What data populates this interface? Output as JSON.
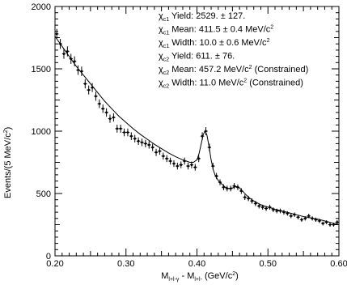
{
  "chart_data": {
    "type": "scatter",
    "title": "",
    "xlabel": {
      "main": "M",
      "sub1": "l+l-γ",
      "mid": " - M",
      "sub2": "l+l-",
      "unit": " (GeV/c",
      "sup": "2",
      "close": ")"
    },
    "ylabel": {
      "main": "Events/(5 MeV/c",
      "sup": "2",
      "close": ")"
    },
    "xlim": [
      0.2,
      0.6
    ],
    "ylim": [
      0,
      2000
    ],
    "xticks": [
      "0.20",
      "0.30",
      "0.40",
      "0.50",
      "0.60"
    ],
    "xtick_values": [
      0.2,
      0.3,
      0.4,
      0.5,
      0.6
    ],
    "yticks": [
      "0",
      "500",
      "1000",
      "1500",
      "2000"
    ],
    "ytick_values": [
      0,
      500,
      1000,
      1500,
      2000
    ],
    "grid": false,
    "annotations": [
      {
        "symbol": "χ",
        "sub": "c1",
        "text": " Yield: 2529. ± 127."
      },
      {
        "symbol": "χ",
        "sub": "c1",
        "text": " Mean: 411.5 ± 0.4 MeV/c",
        "sup": "2"
      },
      {
        "symbol": "χ",
        "sub": "c1",
        "text": " Width:  10.0 ± 0.6 MeV/c",
        "sup": "2"
      },
      {
        "symbol": "χ",
        "sub": "c2",
        "text": " Yield: 611. ± 76."
      },
      {
        "symbol": "χ",
        "sub": "c2",
        "text": " Mean: 457.2 MeV/c",
        "sup": "2",
        "tail": " (Constrained)"
      },
      {
        "symbol": "χ",
        "sub": "c2",
        "text": " Width:  11.0 MeV/c",
        "sup": "2",
        "tail": " (Constrained)"
      }
    ],
    "series": [
      {
        "x": [
          0.2025,
          0.2075,
          0.2125,
          0.2175,
          0.2225,
          0.2275,
          0.2325,
          0.2375,
          0.2425,
          0.2475,
          0.2525,
          0.2575,
          0.2625,
          0.2675,
          0.2725,
          0.2775,
          0.2825,
          0.2875,
          0.2925,
          0.2975,
          0.3025,
          0.3075,
          0.3125,
          0.3175,
          0.3225,
          0.3275,
          0.3325,
          0.3375,
          0.3425,
          0.3475,
          0.3525,
          0.3575,
          0.3625,
          0.3675,
          0.3725,
          0.3775,
          0.3825,
          0.3875,
          0.3925,
          0.3975,
          0.4025,
          0.4075,
          0.4125,
          0.4175,
          0.4225,
          0.4275,
          0.4325,
          0.4375,
          0.4425,
          0.4475,
          0.4525,
          0.4575,
          0.4625,
          0.4675,
          0.4725,
          0.4775,
          0.4825,
          0.4875,
          0.4925,
          0.4975,
          0.5025,
          0.5075,
          0.5125,
          0.5175,
          0.5225,
          0.5275,
          0.5325,
          0.5375,
          0.5425,
          0.5475,
          0.5525,
          0.5575,
          0.5625,
          0.5675,
          0.5725,
          0.5775,
          0.5825,
          0.5875,
          0.5925,
          0.5975
        ],
        "y": [
          1780,
          1700,
          1620,
          1640,
          1580,
          1560,
          1490,
          1480,
          1380,
          1330,
          1350,
          1280,
          1220,
          1180,
          1150,
          1100,
          1110,
          1020,
          1020,
          990,
          990,
          960,
          940,
          920,
          910,
          900,
          890,
          870,
          830,
          840,
          800,
          780,
          760,
          740,
          720,
          730,
          760,
          720,
          730,
          710,
          780,
          960,
          1000,
          870,
          720,
          640,
          590,
          550,
          540,
          540,
          560,
          550,
          520,
          470,
          460,
          440,
          420,
          400,
          390,
          380,
          390,
          370,
          360,
          360,
          350,
          340,
          320,
          330,
          310,
          290,
          300,
          320,
          300,
          290,
          280,
          260,
          270,
          250,
          250,
          270
        ],
        "err": [
          40,
          40,
          40,
          40,
          40,
          40,
          38,
          38,
          37,
          36,
          36,
          36,
          35,
          34,
          34,
          33,
          33,
          32,
          32,
          31,
          31,
          31,
          30,
          30,
          30,
          30,
          30,
          29,
          29,
          29,
          28,
          28,
          28,
          27,
          27,
          27,
          28,
          27,
          27,
          27,
          28,
          31,
          32,
          30,
          27,
          25,
          24,
          24,
          23,
          23,
          24,
          23,
          23,
          22,
          21,
          21,
          21,
          20,
          20,
          20,
          20,
          19,
          19,
          19,
          19,
          18,
          18,
          18,
          18,
          17,
          17,
          18,
          17,
          17,
          17,
          16,
          16,
          16,
          16,
          16
        ]
      }
    ],
    "fit_curve": {
      "x": [
        0.2,
        0.21,
        0.22,
        0.23,
        0.24,
        0.25,
        0.26,
        0.27,
        0.28,
        0.29,
        0.3,
        0.31,
        0.32,
        0.33,
        0.34,
        0.35,
        0.36,
        0.37,
        0.38,
        0.39,
        0.395,
        0.4,
        0.403,
        0.406,
        0.409,
        0.4115,
        0.414,
        0.417,
        0.42,
        0.423,
        0.426,
        0.43,
        0.435,
        0.44,
        0.445,
        0.45,
        0.455,
        0.4572,
        0.46,
        0.465,
        0.47,
        0.475,
        0.48,
        0.49,
        0.5,
        0.51,
        0.52,
        0.53,
        0.54,
        0.55,
        0.56,
        0.57,
        0.58,
        0.59,
        0.6
      ],
      "y": [
        1760,
        1680,
        1600,
        1520,
        1450,
        1380,
        1310,
        1240,
        1180,
        1120,
        1070,
        1020,
        975,
        935,
        895,
        860,
        825,
        795,
        770,
        750,
        750,
        770,
        820,
        900,
        975,
        1000,
        970,
        880,
        770,
        690,
        640,
        605,
        575,
        550,
        540,
        545,
        555,
        555,
        545,
        515,
        485,
        460,
        440,
        410,
        390,
        375,
        360,
        345,
        330,
        315,
        305,
        295,
        280,
        265,
        250
      ]
    }
  }
}
